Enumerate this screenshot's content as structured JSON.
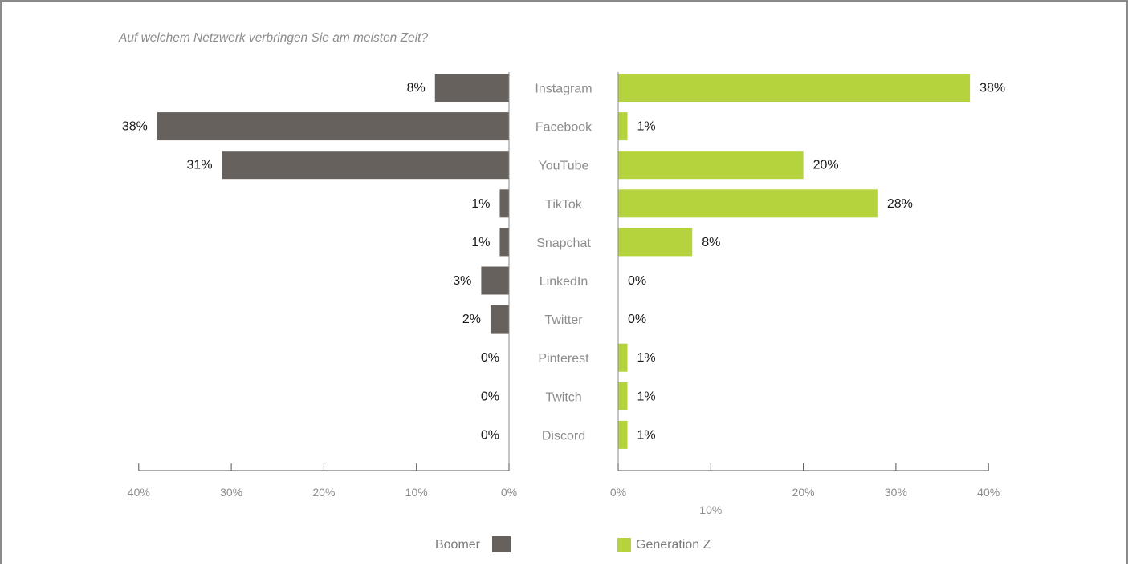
{
  "chart_data": {
    "type": "bar",
    "title": "Auf welchem Netzwerk verbringen Sie am meisten Zeit?",
    "categories": [
      "Instagram",
      "Facebook",
      "YouTube",
      "TikTok",
      "Snapchat",
      "LinkedIn",
      "Twitter",
      "Pinterest",
      "Twitch",
      "Discord"
    ],
    "series": [
      {
        "name": "Boomer",
        "color": "#66615c",
        "values": [
          8,
          38,
          31,
          1,
          1,
          3,
          2,
          0,
          0,
          0
        ],
        "labels": [
          "8%",
          "38%",
          "31%",
          "1%",
          "1%",
          "3%",
          "2%",
          "0%",
          "0%",
          "0%"
        ]
      },
      {
        "name": "Generation Z",
        "color": "#b5d33d",
        "values": [
          38,
          1,
          20,
          28,
          8,
          0,
          0,
          1,
          1,
          1
        ],
        "labels": [
          "38%",
          "1%",
          "20%",
          "28%",
          "8%",
          "0%",
          "0%",
          "1%",
          "1%",
          "1%"
        ]
      }
    ],
    "xlim": [
      0,
      40
    ],
    "left_ticks": [
      "40%",
      "30%",
      "20%",
      "10%",
      "0%"
    ],
    "right_ticks": [
      "0%",
      "10%",
      "20%",
      "30%",
      "40%"
    ],
    "grid": false,
    "legend_position": "bottom"
  }
}
